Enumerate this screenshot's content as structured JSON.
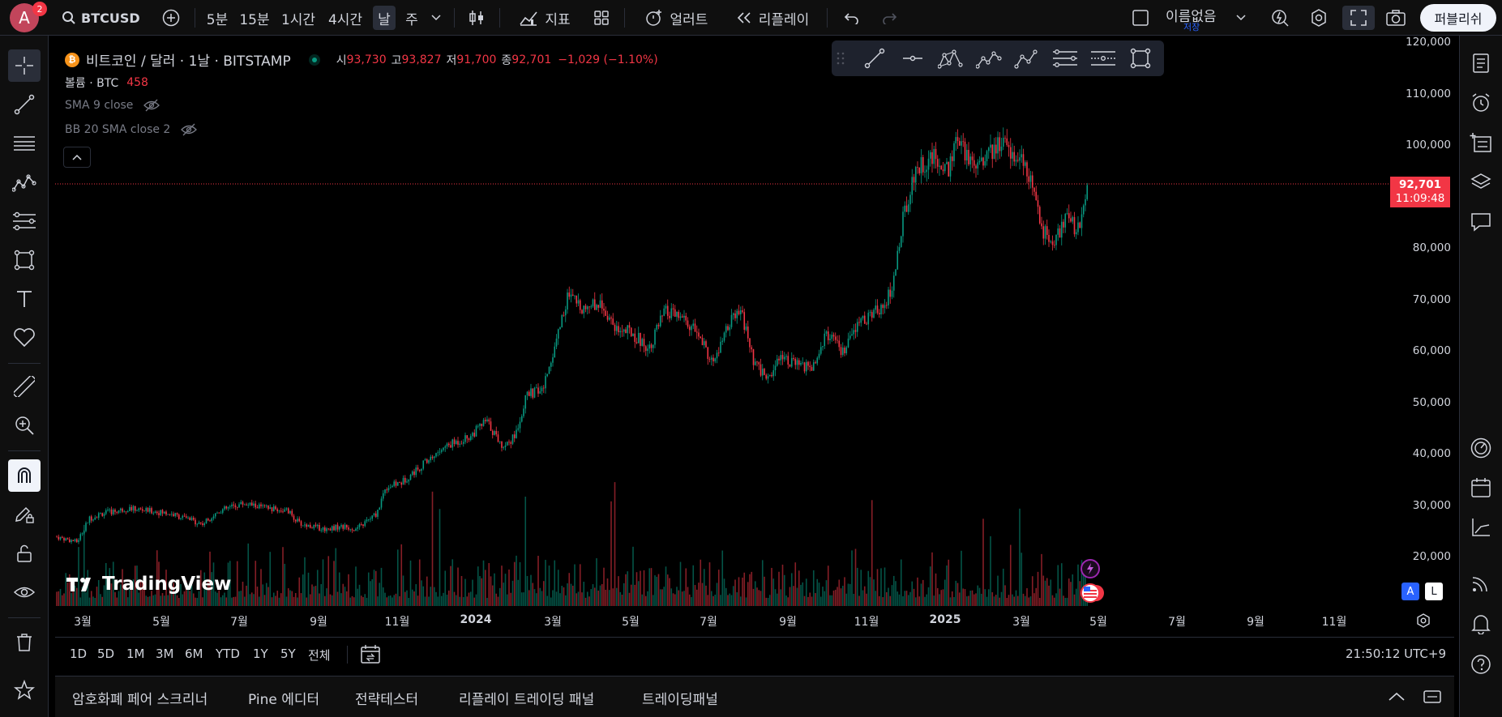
{
  "header": {
    "avatar_letter": "A",
    "avatar_badge": "2",
    "symbol": "BTCUSD",
    "intervals": [
      "5분",
      "15분",
      "1시간",
      "4시간",
      "날",
      "주"
    ],
    "active_interval": "날",
    "indicators_label": "지표",
    "alert_label": "얼러트",
    "replay_label": "리플레이",
    "layout_name": "이름없음",
    "layout_status": "저장",
    "publish_label": "퍼블리쉬"
  },
  "legend": {
    "title": "비트코인 / 달러 · 1날 · BITSTAMP",
    "open_label": "시",
    "open": "93,730",
    "high_label": "고",
    "high": "93,827",
    "low_label": "저",
    "low": "91,700",
    "close_label": "종",
    "close": "92,701",
    "change": "−1,029 (−1.10%)",
    "volume_label": "볼륨 · BTC",
    "volume": "458",
    "sma_label": "SMA 9 close",
    "bb_label": "BB 20 SMA close 2"
  },
  "price_axis": {
    "ticks": [
      "120,000",
      "110,000",
      "100,000",
      "80,000",
      "70,000",
      "60,000",
      "50,000",
      "40,000",
      "30,000",
      "20,000"
    ],
    "current_price": "92,701",
    "countdown": "11:09:48"
  },
  "time_axis": {
    "ticks": [
      "3월",
      "5월",
      "7월",
      "9월",
      "11월",
      "2024",
      "3월",
      "5월",
      "7월",
      "9월",
      "11월",
      "2025",
      "3월",
      "5월",
      "7월",
      "9월",
      "11월"
    ]
  },
  "watermark": "TradingView",
  "scale_buttons": {
    "auto": "A",
    "log": "L"
  },
  "ranges": [
    "1D",
    "5D",
    "1M",
    "3M",
    "6M",
    "YTD",
    "1Y",
    "5Y",
    "전체"
  ],
  "clock": "21:50:12 UTC+9",
  "bottom_tabs": [
    "암호화폐 페어 스크리너",
    "Pine 에디터",
    "전략테스터",
    "리플레이 트레이딩 패널",
    "트레이딩패널"
  ],
  "colors": {
    "up": "#089981",
    "down": "#f23645",
    "accent": "#2962ff",
    "bitcoin": "#f7931a"
  }
}
